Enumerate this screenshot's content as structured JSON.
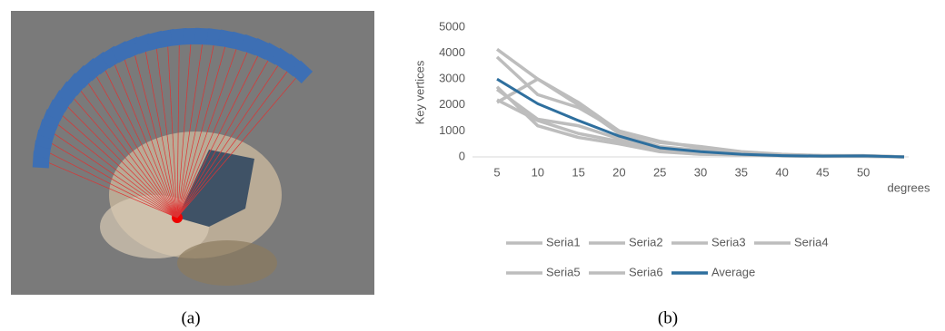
{
  "captions": [
    "(a)",
    "(b)"
  ],
  "chart_data": {
    "type": "line",
    "y_label": "Key vertices",
    "x_label": "degrees",
    "categories": [
      "5",
      "10",
      "15",
      "20",
      "25",
      "30",
      "35",
      "40",
      "45",
      "50",
      null
    ],
    "ylim": [
      0,
      5000
    ],
    "yticks": [
      0,
      1000,
      2000,
      3000,
      4000,
      5000
    ],
    "series": [
      {
        "name": "Seria1",
        "color": "#bdbdbd",
        "values": [
          4150,
          3000,
          2000,
          900,
          400,
          250,
          150,
          80,
          50,
          50,
          0
        ]
      },
      {
        "name": "Seria2",
        "color": "#bdbdbd",
        "values": [
          3850,
          2400,
          1900,
          1000,
          550,
          400,
          200,
          100,
          50,
          50,
          0
        ]
      },
      {
        "name": "Seria3",
        "color": "#bdbdbd",
        "values": [
          2600,
          1450,
          1200,
          700,
          300,
          150,
          100,
          50,
          30,
          30,
          0
        ]
      },
      {
        "name": "Seria4",
        "color": "#bdbdbd",
        "values": [
          2100,
          3000,
          2100,
          1000,
          600,
          350,
          150,
          80,
          50,
          40,
          0
        ]
      },
      {
        "name": "Seria5",
        "color": "#bdbdbd",
        "values": [
          2700,
          1200,
          750,
          500,
          200,
          100,
          80,
          40,
          20,
          20,
          0
        ]
      },
      {
        "name": "Seria6",
        "color": "#bdbdbd",
        "values": [
          2200,
          1400,
          900,
          600,
          250,
          120,
          80,
          40,
          20,
          20,
          0
        ]
      },
      {
        "name": "Average",
        "color": "#2e6f9e",
        "values": [
          3000,
          2050,
          1400,
          800,
          350,
          200,
          100,
          50,
          30,
          40,
          0
        ]
      }
    ]
  }
}
